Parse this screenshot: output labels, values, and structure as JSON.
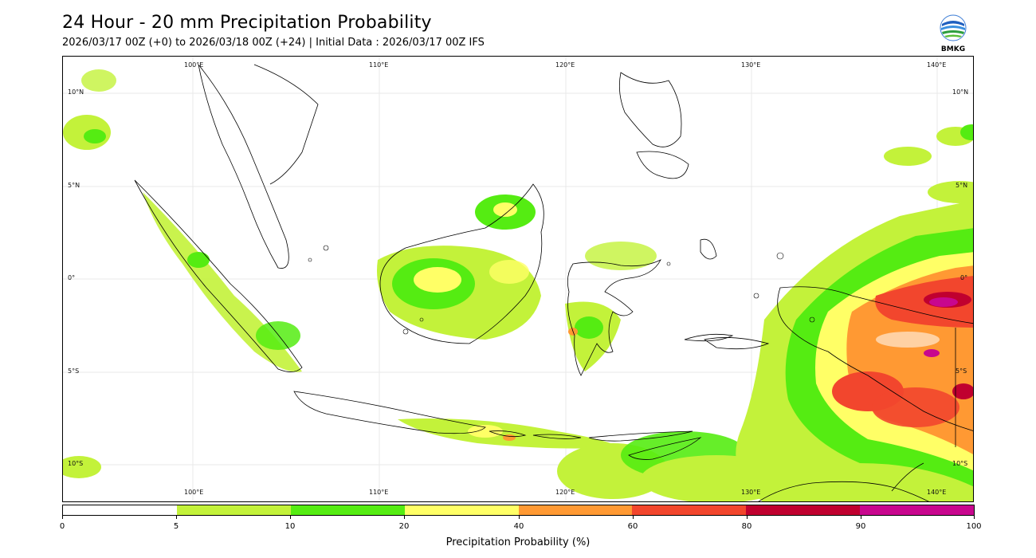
{
  "header": {
    "title": "24 Hour - 20 mm Precipitation Probability",
    "subtitle": "2026/03/17 00Z (+0) to 2026/03/18 00Z (+24) | Initial Data : 2026/03/17 00Z IFS"
  },
  "logo": {
    "text": "BMKG",
    "icon": "bmkg-logo-icon"
  },
  "map": {
    "lon_labels": [
      "100°E",
      "110°E",
      "120°E",
      "130°E",
      "140°E"
    ],
    "lat_labels": [
      "10°N",
      "5°N",
      "0°",
      "5°S",
      "10°S"
    ],
    "colors": {
      "land_outline": "#000000",
      "grid": "#e6e6e6"
    }
  },
  "colorbar": {
    "label": "Precipitation Probability (%)",
    "ticks": [
      "0",
      "5",
      "10",
      "20",
      "40",
      "60",
      "80",
      "90",
      "100"
    ],
    "bins": [
      {
        "range": "0-5",
        "color": "#ffffff"
      },
      {
        "range": "5-10",
        "color": "#c3f23a"
      },
      {
        "range": "10-20",
        "color": "#55ec12"
      },
      {
        "range": "20-40",
        "color": "#ffff66"
      },
      {
        "range": "40-60",
        "color": "#ff9933"
      },
      {
        "range": "60-80",
        "color": "#f2462d"
      },
      {
        "range": "80-90",
        "color": "#c0002f"
      },
      {
        "range": "90-100",
        "color": "#c8078e"
      }
    ]
  }
}
